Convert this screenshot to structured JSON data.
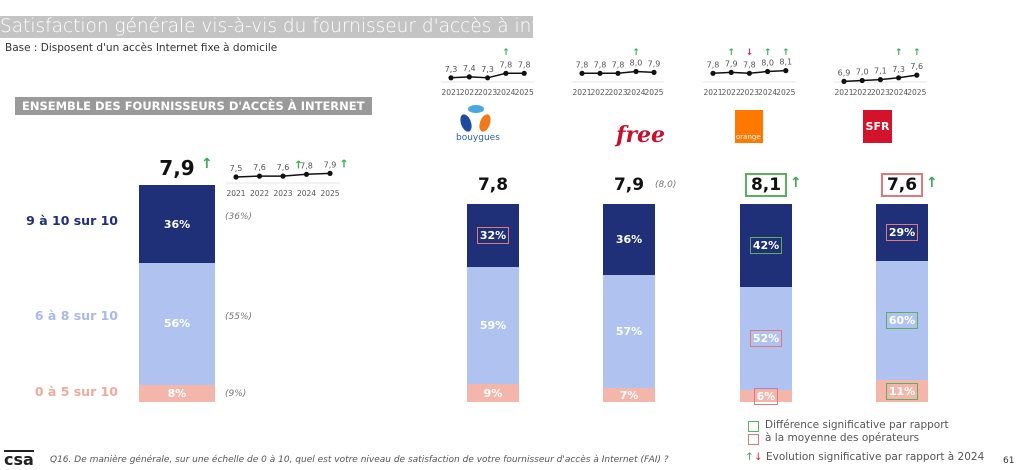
{
  "title": "Satisfaction générale vis-à-vis du fournisseur d'accès à internet",
  "base": "Base : Disposent d'un accès Internet fixe à domicile",
  "ensemble_label": "ENSEMBLE DES FOURNISSEURS D'ACCÈS À INTERNET",
  "colors": {
    "top": "#1f2f78",
    "mid": "#b0c2f0",
    "low": "#f4b6ab",
    "green": "#5bb05b",
    "red": "#e07a7a",
    "arrow_up": "#3aaa55",
    "arrow_down": "#d9304a"
  },
  "chart_data": {
    "type": "bar",
    "stacked": true,
    "categories": [
      "9 à 10 sur 10",
      "6 à 8 sur 10",
      "0 à 5 sur 10"
    ],
    "years": [
      "2021",
      "2022",
      "2023",
      "2024",
      "2025"
    ],
    "groups": [
      {
        "id": "total",
        "score": "7,9",
        "score_arrow": "up",
        "score_prev": "",
        "score_box": null,
        "values": [
          36,
          56,
          8
        ],
        "labels": [
          "36%",
          "56%",
          "8%"
        ],
        "prev": [
          "(36%)",
          "(55%)",
          "(9%)"
        ],
        "flags": [
          null,
          null,
          null
        ],
        "trend": [
          7.5,
          7.6,
          7.6,
          7.8,
          7.9
        ],
        "trend_labels": [
          "7,5",
          "7,6",
          "7,6",
          "7,8",
          "7,9"
        ],
        "trend_arrows": [
          null,
          null,
          null,
          "up",
          "up"
        ]
      },
      {
        "id": "bouygues",
        "logo": "bouygues",
        "score": "7,8",
        "score_arrow": null,
        "score_prev": "",
        "score_box": null,
        "values": [
          32,
          59,
          9
        ],
        "labels": [
          "32%",
          "59%",
          "9%"
        ],
        "flags": [
          "red",
          null,
          null
        ],
        "trend": [
          7.3,
          7.4,
          7.3,
          7.8,
          7.8
        ],
        "trend_labels": [
          "7,3",
          "7,4",
          "7,3",
          "7,8",
          "7,8"
        ],
        "trend_arrows": [
          null,
          null,
          null,
          "up",
          null
        ]
      },
      {
        "id": "free",
        "logo": "free",
        "score": "7,9",
        "score_arrow": null,
        "score_prev": "(8,0)",
        "score_box": null,
        "values": [
          36,
          57,
          7
        ],
        "labels": [
          "36%",
          "57%",
          "7%"
        ],
        "flags": [
          null,
          null,
          null
        ],
        "trend": [
          7.8,
          7.8,
          7.8,
          8.0,
          7.9
        ],
        "trend_labels": [
          "7,8",
          "7,8",
          "7,8",
          "8,0",
          "7,9"
        ],
        "trend_arrows": [
          null,
          null,
          null,
          "up",
          null
        ]
      },
      {
        "id": "orange",
        "logo": "orange",
        "score": "8,1",
        "score_arrow": "up",
        "score_prev": "",
        "score_box": "green",
        "values": [
          42,
          52,
          6
        ],
        "labels": [
          "42%",
          "52%",
          "6%"
        ],
        "flags": [
          "green",
          "red",
          "red"
        ],
        "trend": [
          7.8,
          7.9,
          7.8,
          8.0,
          8.1
        ],
        "trend_labels": [
          "7,8",
          "7,9",
          "7,8",
          "8,0",
          "8,1"
        ],
        "trend_arrows": [
          null,
          "up",
          "down",
          "up",
          "up"
        ]
      },
      {
        "id": "sfr",
        "logo": "SFR",
        "score": "7,6",
        "score_arrow": "up",
        "score_prev": "",
        "score_box": "red",
        "values": [
          29,
          60,
          11
        ],
        "labels": [
          "29%",
          "60%",
          "11%"
        ],
        "flags": [
          "red",
          "green",
          "green"
        ],
        "trend": [
          6.9,
          7.0,
          7.1,
          7.3,
          7.6
        ],
        "trend_labels": [
          "6,9",
          "7,0",
          "7,1",
          "7,3",
          "7,6"
        ],
        "trend_arrows": [
          null,
          null,
          null,
          "up",
          "up"
        ]
      }
    ]
  },
  "legend": {
    "line1": "Différence significative par rapport",
    "line2": "à la moyenne des opérateurs",
    "evolution": "Evolution significative par rapport à 2024"
  },
  "footer": {
    "logo": "csa",
    "question": "Q16. De manière générale, sur une échelle de 0 à 10, quel est votre niveau de satisfaction de votre fournisseur d'accès à Internet (FAI) ?",
    "page": "61"
  }
}
